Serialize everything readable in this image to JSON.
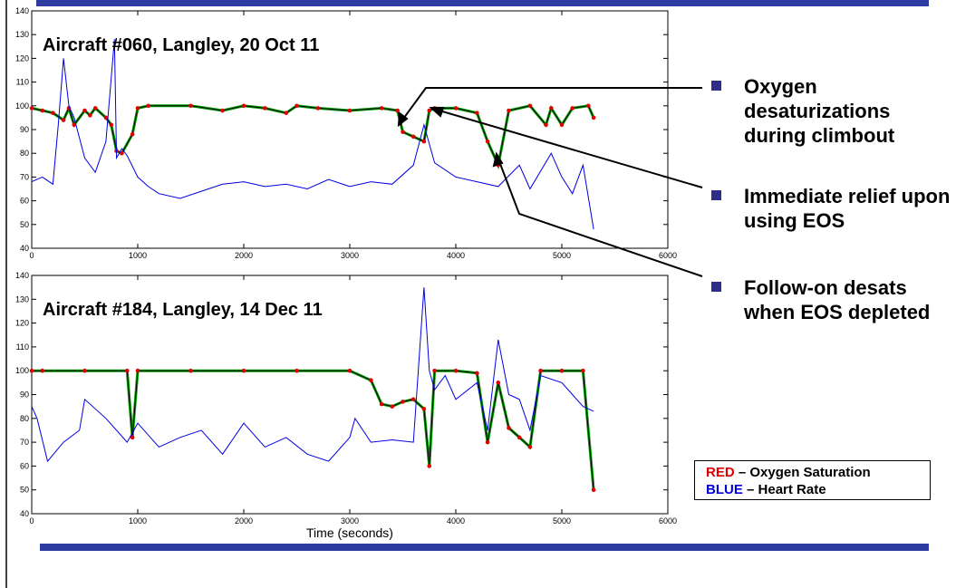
{
  "colors": {
    "accent_bar": "#2e3ba0",
    "oxygen": "#e00000",
    "heart_rate": "#0000e0",
    "fit_line": "#000000",
    "smooth_line": "#00a000",
    "bullet": "#2e2e8a"
  },
  "bullets": [
    "Oxygen desaturizations during climbout",
    "Immediate relief upon using EOS",
    "Follow-on desats when EOS depleted"
  ],
  "legend": {
    "red_keyword": "RED",
    "red_rest": " – Oxygen Saturation",
    "blue_keyword": "BLUE",
    "blue_rest": " – Heart Rate"
  },
  "chart_data": [
    {
      "type": "line",
      "title": "Aircraft #060, Langley, 20 Oct 11",
      "xlabel": "",
      "ylabel": "",
      "xlim": [
        0,
        6000
      ],
      "ylim": [
        40,
        140
      ],
      "xticks": [
        0,
        1000,
        2000,
        3000,
        4000,
        5000,
        6000
      ],
      "yticks": [
        40,
        50,
        60,
        70,
        80,
        90,
        100,
        110,
        120,
        130,
        140
      ],
      "legend": "none",
      "series": [
        {
          "color": "#e00000",
          "x": [
            0,
            100,
            200,
            300,
            350,
            400,
            500,
            550,
            600,
            700,
            750,
            800,
            850,
            950,
            1000,
            1100,
            1500,
            1800,
            2000,
            2200,
            2400,
            2500,
            2700,
            3000,
            3300,
            3450,
            3500,
            3600,
            3700,
            3750,
            3800,
            4000,
            4200,
            4300,
            4400,
            4500,
            4700,
            4850,
            4900,
            5000,
            5100,
            5250,
            5300
          ],
          "values": [
            99,
            98,
            97,
            94,
            99,
            92,
            98,
            96,
            99,
            95,
            92,
            81,
            80,
            88,
            99,
            100,
            100,
            98,
            100,
            99,
            97,
            100,
            99,
            98,
            99,
            98,
            89,
            87,
            85,
            98,
            99,
            99,
            97,
            85,
            75,
            98,
            100,
            92,
            99,
            92,
            99,
            100,
            95
          ]
        },
        {
          "color": "#0000e0",
          "x": [
            0,
            100,
            200,
            250,
            300,
            350,
            400,
            500,
            600,
            700,
            780,
            800,
            850,
            900,
            1000,
            1100,
            1200,
            1400,
            1600,
            1800,
            2000,
            2200,
            2400,
            2600,
            2800,
            3000,
            3200,
            3400,
            3600,
            3700,
            3800,
            4000,
            4200,
            4400,
            4600,
            4700,
            4900,
            5000,
            5100,
            5200,
            5300
          ],
          "values": [
            68,
            70,
            67,
            92,
            120,
            100,
            95,
            78,
            72,
            85,
            128,
            78,
            82,
            79,
            70,
            66,
            63,
            61,
            64,
            67,
            68,
            66,
            67,
            65,
            69,
            66,
            68,
            67,
            75,
            92,
            76,
            70,
            68,
            66,
            75,
            65,
            80,
            70,
            63,
            75,
            48
          ]
        }
      ]
    },
    {
      "type": "line",
      "title": "Aircraft #184, Langley, 14 Dec 11",
      "xlabel": "Time (seconds)",
      "ylabel": "",
      "xlim": [
        0,
        6000
      ],
      "ylim": [
        40,
        140
      ],
      "xticks": [
        0,
        1000,
        2000,
        3000,
        4000,
        5000,
        6000
      ],
      "yticks": [
        40,
        50,
        60,
        70,
        80,
        90,
        100,
        110,
        120,
        130,
        140
      ],
      "legend": "none",
      "series": [
        {
          "color": "#e00000",
          "x": [
            0,
            100,
            500,
            900,
            950,
            1000,
            1500,
            2000,
            2500,
            3000,
            3200,
            3300,
            3400,
            3500,
            3600,
            3700,
            3750,
            3800,
            4000,
            4200,
            4300,
            4400,
            4500,
            4600,
            4700,
            4800,
            5000,
            5200,
            5300
          ],
          "values": [
            100,
            100,
            100,
            100,
            72,
            100,
            100,
            100,
            100,
            100,
            96,
            86,
            85,
            87,
            88,
            84,
            60,
            100,
            100,
            99,
            70,
            95,
            76,
            72,
            68,
            100,
            100,
            100,
            50
          ]
        },
        {
          "color": "#0000e0",
          "x": [
            0,
            50,
            150,
            300,
            450,
            500,
            700,
            900,
            1000,
            1200,
            1400,
            1600,
            1800,
            2000,
            2200,
            2400,
            2600,
            2800,
            3000,
            3050,
            3200,
            3400,
            3600,
            3700,
            3750,
            3800,
            3900,
            4000,
            4200,
            4300,
            4400,
            4500,
            4600,
            4700,
            4800,
            5000,
            5100,
            5200,
            5300
          ],
          "values": [
            85,
            80,
            62,
            70,
            75,
            88,
            80,
            70,
            78,
            68,
            72,
            75,
            65,
            78,
            68,
            72,
            65,
            62,
            72,
            80,
            70,
            71,
            70,
            135,
            100,
            92,
            98,
            88,
            95,
            75,
            113,
            90,
            88,
            75,
            98,
            95,
            90,
            85,
            83
          ]
        }
      ]
    }
  ]
}
